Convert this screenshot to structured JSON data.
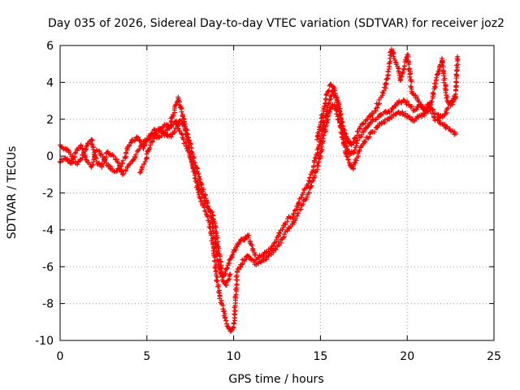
{
  "chart_data": {
    "type": "scatter",
    "title": "Day 035 of 2026, Sidereal Day-to-day VTEC variation (SDTVAR) for receiver joz2",
    "xlabel": "GPS time / hours",
    "ylabel": "SDTVAR / TECUs",
    "xlim": [
      0,
      25
    ],
    "ylim": [
      -10,
      6
    ],
    "xticks": [
      "0",
      "5",
      "10",
      "15",
      "20",
      "25"
    ],
    "yticks": [
      "-10",
      "-8",
      "-6",
      "-4",
      "-2",
      "0",
      "2",
      "4",
      "6"
    ],
    "grid": true,
    "marker": "+",
    "color": "#ff0000",
    "series": [
      {
        "values": [
          [
            0.0,
            -0.3
          ],
          [
            0.3,
            -0.1
          ],
          [
            0.6,
            -0.4
          ],
          [
            0.9,
            0.2
          ],
          [
            1.2,
            0.6
          ],
          [
            1.5,
            -0.2
          ],
          [
            1.8,
            -0.6
          ],
          [
            2.1,
            0.3
          ],
          [
            2.4,
            0.1
          ],
          [
            2.7,
            -0.5
          ],
          [
            3.0,
            -0.7
          ],
          [
            3.3,
            -0.8
          ],
          [
            3.6,
            -0.4
          ],
          [
            3.9,
            0.5
          ],
          [
            4.2,
            0.9
          ],
          [
            4.5,
            1.0
          ],
          [
            4.8,
            0.4
          ],
          [
            5.1,
            1.1
          ],
          [
            5.4,
            1.2
          ],
          [
            5.7,
            1.0
          ],
          [
            6.0,
            1.3
          ],
          [
            6.3,
            1.5
          ],
          [
            6.6,
            2.6
          ],
          [
            6.8,
            3.2
          ],
          [
            7.0,
            2.4
          ],
          [
            7.2,
            1.6
          ],
          [
            7.4,
            1.0
          ],
          [
            7.6,
            0.2
          ],
          [
            7.8,
            -0.5
          ],
          [
            8.0,
            -1.2
          ],
          [
            8.2,
            -1.8
          ],
          [
            8.4,
            -2.3
          ],
          [
            8.6,
            -2.9
          ],
          [
            8.8,
            -3.8
          ],
          [
            9.0,
            -5.2
          ],
          [
            9.2,
            -6.3
          ],
          [
            9.4,
            -6.5
          ],
          [
            9.6,
            -6.1
          ],
          [
            9.8,
            -5.6
          ],
          [
            10.0,
            -5.2
          ],
          [
            10.2,
            -4.9
          ],
          [
            10.4,
            -4.6
          ],
          [
            10.6,
            -4.5
          ],
          [
            10.8,
            -4.3
          ],
          [
            11.0,
            -4.8
          ],
          [
            11.3,
            -5.6
          ],
          [
            11.6,
            -5.4
          ],
          [
            11.9,
            -5.2
          ],
          [
            12.2,
            -5.0
          ],
          [
            12.5,
            -4.4
          ],
          [
            12.8,
            -4.0
          ],
          [
            13.1,
            -3.4
          ],
          [
            13.4,
            -3.3
          ],
          [
            13.7,
            -2.6
          ],
          [
            14.0,
            -2.0
          ],
          [
            14.3,
            -1.5
          ],
          [
            14.6,
            -0.6
          ],
          [
            14.9,
            0.5
          ],
          [
            15.1,
            1.4
          ],
          [
            15.3,
            2.2
          ],
          [
            15.5,
            2.9
          ],
          [
            15.7,
            3.5
          ],
          [
            15.9,
            3.2
          ],
          [
            16.1,
            2.4
          ],
          [
            16.3,
            1.4
          ],
          [
            16.5,
            0.5
          ],
          [
            16.7,
            0.1
          ],
          [
            16.9,
            0.2
          ],
          [
            17.1,
            0.7
          ],
          [
            17.4,
            1.3
          ],
          [
            17.7,
            1.6
          ],
          [
            18.0,
            1.9
          ],
          [
            18.3,
            2.1
          ],
          [
            18.6,
            2.3
          ],
          [
            18.9,
            2.4
          ],
          [
            19.2,
            2.6
          ],
          [
            19.5,
            2.9
          ],
          [
            19.8,
            3.0
          ],
          [
            20.1,
            2.8
          ],
          [
            20.4,
            2.5
          ],
          [
            20.7,
            2.8
          ],
          [
            21.0,
            2.6
          ],
          [
            21.3,
            2.9
          ],
          [
            21.6,
            2.3
          ],
          [
            21.9,
            2.1
          ],
          [
            22.2,
            2.3
          ],
          [
            22.5,
            2.9
          ],
          [
            22.8,
            3.2
          ]
        ]
      },
      {
        "values": [
          [
            0.0,
            0.6
          ],
          [
            0.3,
            0.4
          ],
          [
            0.6,
            0.1
          ],
          [
            0.9,
            -0.4
          ],
          [
            1.2,
            -0.2
          ],
          [
            1.5,
            0.5
          ],
          [
            1.8,
            0.9
          ],
          [
            2.1,
            -0.3
          ],
          [
            2.4,
            -0.6
          ],
          [
            2.7,
            0.2
          ],
          [
            3.0,
            0.1
          ],
          [
            3.3,
            -0.3
          ],
          [
            3.6,
            -1.0
          ],
          [
            3.9,
            -0.6
          ],
          [
            4.2,
            -0.2
          ],
          [
            4.5,
            0.3
          ],
          [
            4.8,
            0.8
          ],
          [
            5.1,
            0.9
          ],
          [
            5.4,
            1.4
          ],
          [
            5.7,
            1.4
          ],
          [
            6.0,
            1.2
          ],
          [
            6.3,
            1.1
          ],
          [
            6.6,
            1.3
          ],
          [
            6.8,
            1.8
          ],
          [
            7.0,
            1.9
          ],
          [
            7.2,
            1.5
          ],
          [
            7.4,
            0.6
          ],
          [
            7.6,
            -0.3
          ],
          [
            7.8,
            -1.2
          ],
          [
            8.0,
            -2.1
          ],
          [
            8.2,
            -2.6
          ],
          [
            8.4,
            -3.0
          ],
          [
            8.6,
            -3.6
          ],
          [
            8.8,
            -4.8
          ],
          [
            9.0,
            -6.4
          ],
          [
            9.2,
            -7.6
          ],
          [
            9.4,
            -8.3
          ],
          [
            9.6,
            -9.1
          ],
          [
            9.8,
            -9.5
          ],
          [
            10.0,
            -9.3
          ],
          [
            10.2,
            -6.3
          ],
          [
            10.4,
            -5.9
          ],
          [
            10.6,
            -5.6
          ],
          [
            10.8,
            -5.4
          ],
          [
            11.0,
            -5.6
          ],
          [
            11.3,
            -5.9
          ],
          [
            11.6,
            -5.7
          ],
          [
            11.9,
            -5.5
          ],
          [
            12.2,
            -5.2
          ],
          [
            12.5,
            -4.9
          ],
          [
            12.8,
            -4.5
          ],
          [
            13.1,
            -4.0
          ],
          [
            13.4,
            -3.7
          ],
          [
            13.7,
            -3.1
          ],
          [
            14.0,
            -2.6
          ],
          [
            14.3,
            -2.0
          ],
          [
            14.6,
            -1.3
          ],
          [
            14.9,
            -0.3
          ],
          [
            15.1,
            0.7
          ],
          [
            15.3,
            1.6
          ],
          [
            15.5,
            2.4
          ],
          [
            15.7,
            2.8
          ],
          [
            15.9,
            2.5
          ],
          [
            16.1,
            1.8
          ],
          [
            16.3,
            0.9
          ],
          [
            16.5,
            0.0
          ],
          [
            16.7,
            -0.5
          ],
          [
            16.9,
            -0.7
          ],
          [
            17.1,
            -0.1
          ],
          [
            17.4,
            0.6
          ],
          [
            17.7,
            1.0
          ],
          [
            18.0,
            1.3
          ],
          [
            18.3,
            1.6
          ],
          [
            18.6,
            1.8
          ],
          [
            18.9,
            2.0
          ],
          [
            19.2,
            2.2
          ],
          [
            19.5,
            2.4
          ],
          [
            19.8,
            2.3
          ],
          [
            20.1,
            2.1
          ],
          [
            20.4,
            1.9
          ],
          [
            20.7,
            2.2
          ],
          [
            21.0,
            2.3
          ],
          [
            21.3,
            2.6
          ],
          [
            21.6,
            2.0
          ],
          [
            21.9,
            1.8
          ],
          [
            22.2,
            1.6
          ],
          [
            22.5,
            1.4
          ],
          [
            22.8,
            1.2
          ]
        ]
      },
      {
        "values": [
          [
            4.6,
            -0.9
          ],
          [
            4.9,
            -0.3
          ],
          [
            5.2,
            0.6
          ],
          [
            5.5,
            1.2
          ],
          [
            5.8,
            1.5
          ],
          [
            6.1,
            1.7
          ],
          [
            6.4,
            1.6
          ],
          [
            6.7,
            1.9
          ],
          [
            7.0,
            1.2
          ],
          [
            7.3,
            0.4
          ],
          [
            7.6,
            -0.4
          ],
          [
            7.9,
            -1.4
          ],
          [
            8.2,
            -2.2
          ],
          [
            8.5,
            -2.7
          ],
          [
            8.8,
            -3.2
          ],
          [
            9.0,
            -4.2
          ],
          [
            9.2,
            -5.6
          ],
          [
            9.4,
            -6.8
          ],
          [
            9.6,
            -7.0
          ],
          [
            9.8,
            -6.4
          ],
          [
            14.8,
            0.9
          ],
          [
            15.0,
            1.7
          ],
          [
            15.2,
            2.6
          ],
          [
            15.4,
            3.4
          ],
          [
            15.6,
            3.9
          ],
          [
            15.8,
            3.7
          ],
          [
            16.0,
            3.0
          ],
          [
            16.2,
            2.0
          ],
          [
            16.4,
            1.2
          ],
          [
            16.6,
            0.8
          ],
          [
            16.8,
            0.6
          ],
          [
            17.0,
            1.0
          ],
          [
            17.3,
            1.6
          ],
          [
            17.6,
            1.9
          ],
          [
            17.9,
            2.2
          ],
          [
            18.2,
            2.6
          ],
          [
            18.5,
            3.2
          ],
          [
            18.8,
            3.9
          ],
          [
            18.9,
            4.6
          ],
          [
            19.0,
            5.3
          ],
          [
            19.1,
            5.8
          ],
          [
            19.3,
            5.2
          ],
          [
            19.5,
            4.6
          ],
          [
            19.6,
            4.1
          ],
          [
            19.8,
            4.7
          ],
          [
            20.0,
            5.5
          ],
          [
            20.3,
            3.4
          ],
          [
            20.6,
            3.1
          ],
          [
            20.9,
            2.6
          ],
          [
            21.2,
            2.4
          ],
          [
            21.5,
            3.4
          ],
          [
            21.8,
            4.6
          ],
          [
            22.0,
            5.3
          ],
          [
            22.3,
            3.0
          ],
          [
            22.6,
            2.8
          ],
          [
            22.8,
            3.6
          ],
          [
            22.9,
            5.4
          ]
        ]
      }
    ]
  }
}
